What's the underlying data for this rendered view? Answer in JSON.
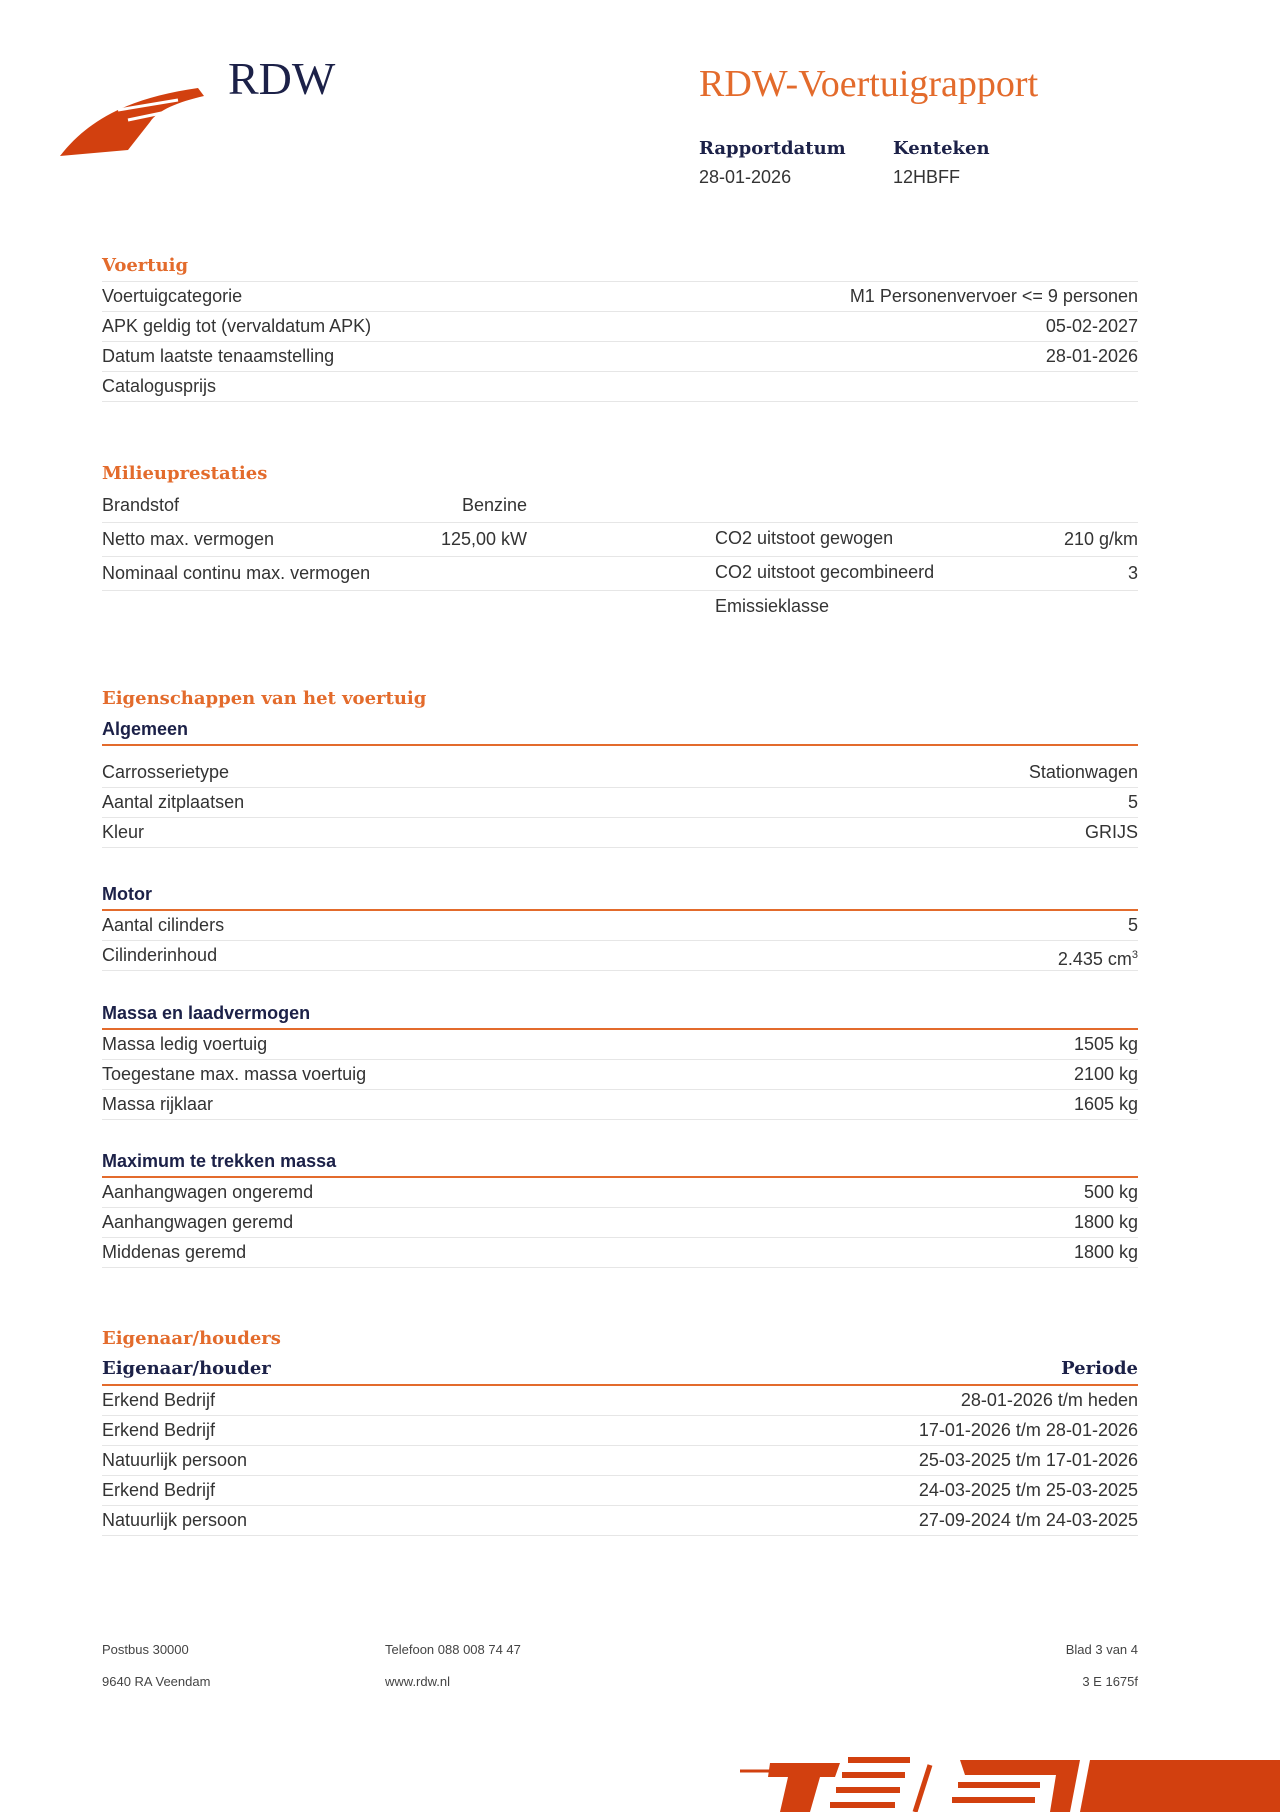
{
  "header": {
    "brand": "RDW",
    "title": "RDW-Voertuigrapport",
    "report_date_label": "Rapportdatum",
    "report_date": "28-01-2026",
    "plate_label": "Kenteken",
    "plate": "12HBFF"
  },
  "voertuig": {
    "heading": "Voertuig",
    "rows": [
      {
        "label": "Voertuigcategorie",
        "value": "M1 Personenvervoer <= 9 personen"
      },
      {
        "label": "APK geldig tot (vervaldatum APK)",
        "value": "05-02-2027"
      },
      {
        "label": "Datum laatste tenaamstelling",
        "value": "28-01-2026"
      },
      {
        "label": "Catalogusprijs",
        "value": ""
      }
    ]
  },
  "milieu": {
    "heading": "Milieuprestaties",
    "rows": [
      {
        "label1": "Brandstof",
        "value1": "Benzine",
        "label2": "CO2 uitstoot gewogen",
        "value2": ""
      },
      {
        "label1": "Netto max. vermogen",
        "value1": "125,00 kW",
        "label2": "CO2 uitstoot gecombineerd",
        "value2": "210 g/km"
      },
      {
        "label1": "Nominaal continu max. vermogen",
        "value1": "",
        "label2": "Emissieklasse",
        "value2": "3"
      }
    ]
  },
  "eigenschappen": {
    "heading": "Eigenschappen van het voertuig",
    "algemeen": {
      "heading": "Algemeen",
      "rows": [
        {
          "label": "Carrosserietype",
          "value": "Stationwagen"
        },
        {
          "label": "Aantal zitplaatsen",
          "value": "5"
        },
        {
          "label": "Kleur",
          "value": "GRIJS"
        }
      ]
    },
    "motor": {
      "heading": "Motor",
      "rows": [
        {
          "label": "Aantal cilinders",
          "value": "5"
        },
        {
          "label": "Cilinderinhoud",
          "value": "2.435 cm",
          "unit_sup": "3"
        }
      ]
    },
    "massa": {
      "heading": "Massa en laadvermogen",
      "rows": [
        {
          "label": "Massa ledig voertuig",
          "value": "1505 kg"
        },
        {
          "label": "Toegestane max. massa voertuig",
          "value": "2100 kg"
        },
        {
          "label": "Massa rijklaar",
          "value": "1605 kg"
        }
      ]
    },
    "trekken": {
      "heading": "Maximum te trekken massa",
      "rows": [
        {
          "label": "Aanhangwagen ongeremd",
          "value": "500 kg"
        },
        {
          "label": "Aanhangwagen geremd",
          "value": "1800 kg"
        },
        {
          "label": "Middenas geremd",
          "value": "1800 kg"
        }
      ]
    }
  },
  "eigenaar": {
    "heading": "Eigenaar/houders",
    "col1": "Eigenaar/houder",
    "col2": "Periode",
    "rows": [
      {
        "label": "Erkend Bedrijf",
        "value": "28-01-2026 t/m heden"
      },
      {
        "label": "Erkend Bedrijf",
        "value": "17-01-2026 t/m 28-01-2026"
      },
      {
        "label": "Natuurlijk persoon",
        "value": "25-03-2025 t/m 17-01-2026"
      },
      {
        "label": "Erkend Bedrijf",
        "value": "24-03-2025 t/m 25-03-2025"
      },
      {
        "label": "Natuurlijk persoon",
        "value": "27-09-2024 t/m 24-03-2025"
      }
    ]
  },
  "footer": {
    "address1": "Postbus 30000",
    "address2": "9640 RA Veendam",
    "phone": "Telefoon 088 008 74 47",
    "web": "www.rdw.nl",
    "page": "Blad 3 van 4",
    "code": "3 E 1675f"
  },
  "colors": {
    "accent": "#e36b2c",
    "logo": "#d2400f",
    "navy": "#1c2148"
  }
}
